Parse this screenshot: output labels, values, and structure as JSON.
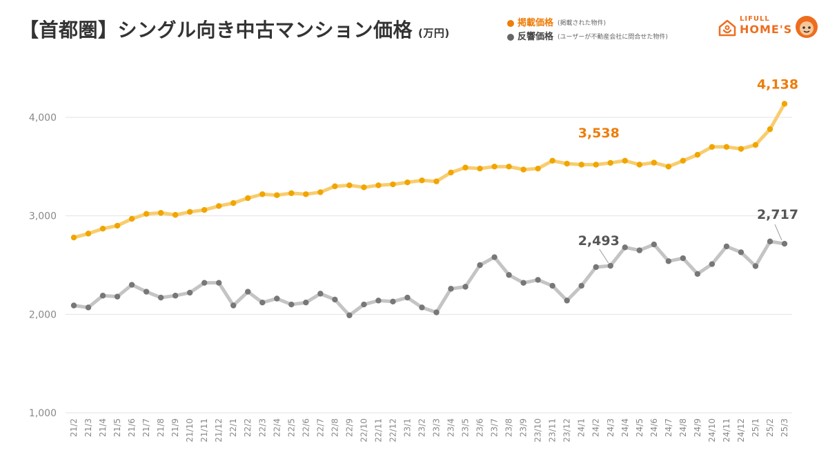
{
  "header": {
    "title": "【首都圏】シングル向き中古マンション価格",
    "unit": "(万円)"
  },
  "legend": [
    {
      "label": "掲載価格",
      "note": "(掲載された物件)",
      "color": "#ed7d0a"
    },
    {
      "label": "反響価格",
      "note": "(ユーザーが不動産会社に問合せた物件)",
      "color": "#666666"
    }
  ],
  "logo": {
    "small": "LIFULL",
    "big": "HOME'S",
    "icon": "house-icon",
    "mascot": "mascot-icon"
  },
  "chart_data": {
    "type": "line",
    "categories": [
      "21/2",
      "21/3",
      "21/4",
      "21/5",
      "21/6",
      "21/7",
      "21/8",
      "21/9",
      "21/10",
      "21/11",
      "21/12",
      "22/1",
      "22/2",
      "22/3",
      "22/4",
      "22/5",
      "22/6",
      "22/7",
      "22/8",
      "22/9",
      "22/10",
      "22/11",
      "22/12",
      "23/1",
      "23/2",
      "23/3",
      "23/4",
      "23/5",
      "23/6",
      "23/7",
      "23/8",
      "23/9",
      "23/10",
      "23/11",
      "23/12",
      "24/1",
      "24/2",
      "24/3",
      "24/4",
      "24/5",
      "24/6",
      "24/7",
      "24/8",
      "24/9",
      "24/10",
      "24/11",
      "24/12",
      "25/1",
      "25/2",
      "25/3"
    ],
    "series": [
      {
        "name": "掲載価格",
        "color": "#f0a500",
        "line_color": "#f8cd6e",
        "values": [
          2780,
          2820,
          2870,
          2900,
          2970,
          3020,
          3030,
          3010,
          3040,
          3060,
          3100,
          3130,
          3180,
          3220,
          3210,
          3230,
          3220,
          3240,
          3300,
          3310,
          3290,
          3310,
          3320,
          3340,
          3360,
          3350,
          3440,
          3490,
          3480,
          3500,
          3500,
          3470,
          3480,
          3560,
          3530,
          3520,
          3520,
          3538,
          3560,
          3520,
          3540,
          3500,
          3560,
          3620,
          3700,
          3700,
          3680,
          3720,
          3880,
          4138
        ]
      },
      {
        "name": "反響価格",
        "color": "#777777",
        "line_color": "#c4c4c4",
        "values": [
          2090,
          2070,
          2190,
          2180,
          2300,
          2230,
          2170,
          2190,
          2220,
          2320,
          2320,
          2090,
          2230,
          2120,
          2160,
          2100,
          2120,
          2210,
          2150,
          1990,
          2100,
          2140,
          2130,
          2170,
          2070,
          2020,
          2260,
          2280,
          2500,
          2580,
          2400,
          2320,
          2350,
          2290,
          2140,
          2290,
          2480,
          2493,
          2680,
          2650,
          2710,
          2540,
          2570,
          2410,
          2510,
          2690,
          2630,
          2490,
          2740,
          2717
        ]
      }
    ],
    "annotations": [
      {
        "series": 0,
        "index": 37,
        "text": "3,538",
        "color": "#ed7d0a"
      },
      {
        "series": 0,
        "index": 49,
        "text": "4,138",
        "color": "#ed7d0a"
      },
      {
        "series": 1,
        "index": 37,
        "text": "2,493",
        "color": "#555555"
      },
      {
        "series": 1,
        "index": 49,
        "text": "2,717",
        "color": "#555555"
      }
    ],
    "yticks": [
      "1,000",
      "2,000",
      "3,000",
      "4,000"
    ],
    "ytick_values": [
      1000,
      2000,
      3000,
      4000
    ],
    "ylim": [
      1000,
      4200
    ],
    "grid": true
  }
}
